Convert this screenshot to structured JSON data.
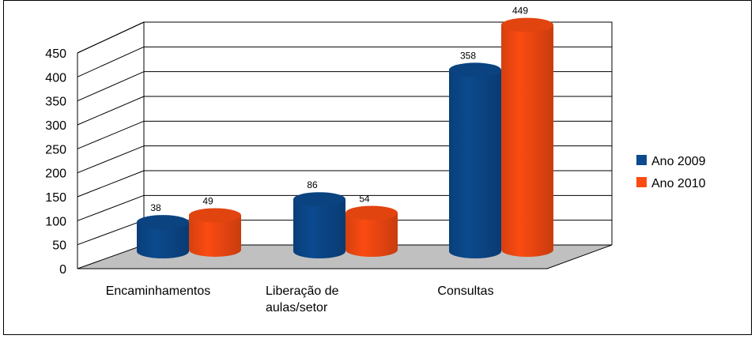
{
  "chart_data": {
    "type": "bar",
    "style": "3d-cylinder",
    "categories": [
      [
        "Encaminhamentos"
      ],
      [
        "Liberação de",
        "aulas/setor"
      ],
      [
        "Consultas"
      ]
    ],
    "series": [
      {
        "name": "Ano 2009",
        "color": "#0b4a8e",
        "values": [
          38,
          86,
          358
        ]
      },
      {
        "name": "Ano 2010",
        "color": "#fb4b12",
        "values": [
          49,
          54,
          449
        ]
      }
    ],
    "data_labels": [
      [
        "38",
        "86",
        "358"
      ],
      [
        "49",
        "54",
        "449"
      ]
    ],
    "yticks": [
      "0",
      "50",
      "100",
      "150",
      "200",
      "250",
      "300",
      "350",
      "400",
      "450"
    ],
    "ylim": [
      0,
      450
    ],
    "grid": true,
    "legend_position": "right",
    "floor_color": "#c0c0c0"
  }
}
